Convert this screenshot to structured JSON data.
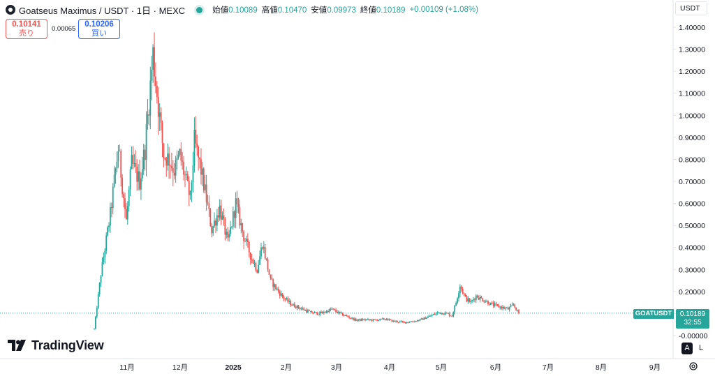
{
  "header": {
    "symbol": "Goatseus Maximus / USDT · 1日 · MEXC",
    "open_label": "始値",
    "open": "0.10089",
    "high_label": "高値",
    "high": "0.10470",
    "low_label": "安値",
    "low": "0.09973",
    "close_label": "終値",
    "close": "0.10189",
    "change": "+0.00109 (+1.08%)"
  },
  "trade": {
    "sell_price": "0.10141",
    "sell_label": "売り",
    "spread": "0.00065",
    "buy_price": "0.10206",
    "buy_label": "買い"
  },
  "currency_button": "USDT",
  "last_price": {
    "symbol": "GOATUSDT",
    "price": "0.10189",
    "countdown": "32:55"
  },
  "logo_text": "TradingView",
  "scale_buttons": {
    "auto": "A",
    "log": "L"
  },
  "colors": {
    "up": "#26a69a",
    "down": "#ef5350"
  },
  "chart_data": {
    "type": "candlestick",
    "y_ticks": [
      "1.40000",
      "1.30000",
      "1.20000",
      "1.10000",
      "1.00000",
      "0.90000",
      "0.80000",
      "0.70000",
      "0.60000",
      "0.50000",
      "0.40000",
      "0.30000",
      "0.20000",
      "0.10000",
      "-0.00000"
    ],
    "ylim": [
      -0.02,
      1.43
    ],
    "x_ticks": [
      "11月",
      "12月",
      "2025",
      "2月",
      "3月",
      "4月",
      "5月",
      "6月",
      "7月",
      "8月",
      "9月"
    ],
    "last_value": 0.10189,
    "keypoints": [
      [
        0,
        0.03
      ],
      [
        5,
        0.28
      ],
      [
        12,
        0.55
      ],
      [
        18,
        0.85
      ],
      [
        24,
        0.52
      ],
      [
        28,
        0.78
      ],
      [
        34,
        0.7
      ],
      [
        38,
        0.85
      ],
      [
        44,
        1.28
      ],
      [
        47,
        1.1
      ],
      [
        52,
        0.82
      ],
      [
        56,
        0.8
      ],
      [
        60,
        0.75
      ],
      [
        64,
        0.82
      ],
      [
        68,
        0.72
      ],
      [
        72,
        0.62
      ],
      [
        75,
        0.88
      ],
      [
        80,
        0.75
      ],
      [
        84,
        0.62
      ],
      [
        88,
        0.48
      ],
      [
        94,
        0.58
      ],
      [
        100,
        0.42
      ],
      [
        106,
        0.6
      ],
      [
        112,
        0.45
      ],
      [
        118,
        0.35
      ],
      [
        122,
        0.3
      ],
      [
        126,
        0.42
      ],
      [
        132,
        0.25
      ],
      [
        138,
        0.2
      ],
      [
        142,
        0.17
      ],
      [
        148,
        0.14
      ],
      [
        156,
        0.12
      ],
      [
        162,
        0.105
      ],
      [
        168,
        0.1
      ],
      [
        172,
        0.105
      ],
      [
        178,
        0.12
      ],
      [
        184,
        0.1
      ],
      [
        190,
        0.085
      ],
      [
        196,
        0.07
      ],
      [
        204,
        0.072
      ],
      [
        210,
        0.07
      ],
      [
        218,
        0.075
      ],
      [
        224,
        0.065
      ],
      [
        232,
        0.06
      ],
      [
        240,
        0.065
      ],
      [
        246,
        0.075
      ],
      [
        252,
        0.09
      ],
      [
        258,
        0.105
      ],
      [
        264,
        0.1
      ],
      [
        268,
        0.09
      ],
      [
        271,
        0.15
      ],
      [
        274,
        0.23
      ],
      [
        278,
        0.17
      ],
      [
        282,
        0.15
      ],
      [
        286,
        0.18
      ],
      [
        292,
        0.16
      ],
      [
        298,
        0.14
      ],
      [
        304,
        0.13
      ],
      [
        310,
        0.12
      ],
      [
        314,
        0.14
      ],
      [
        318,
        0.1
      ]
    ]
  }
}
